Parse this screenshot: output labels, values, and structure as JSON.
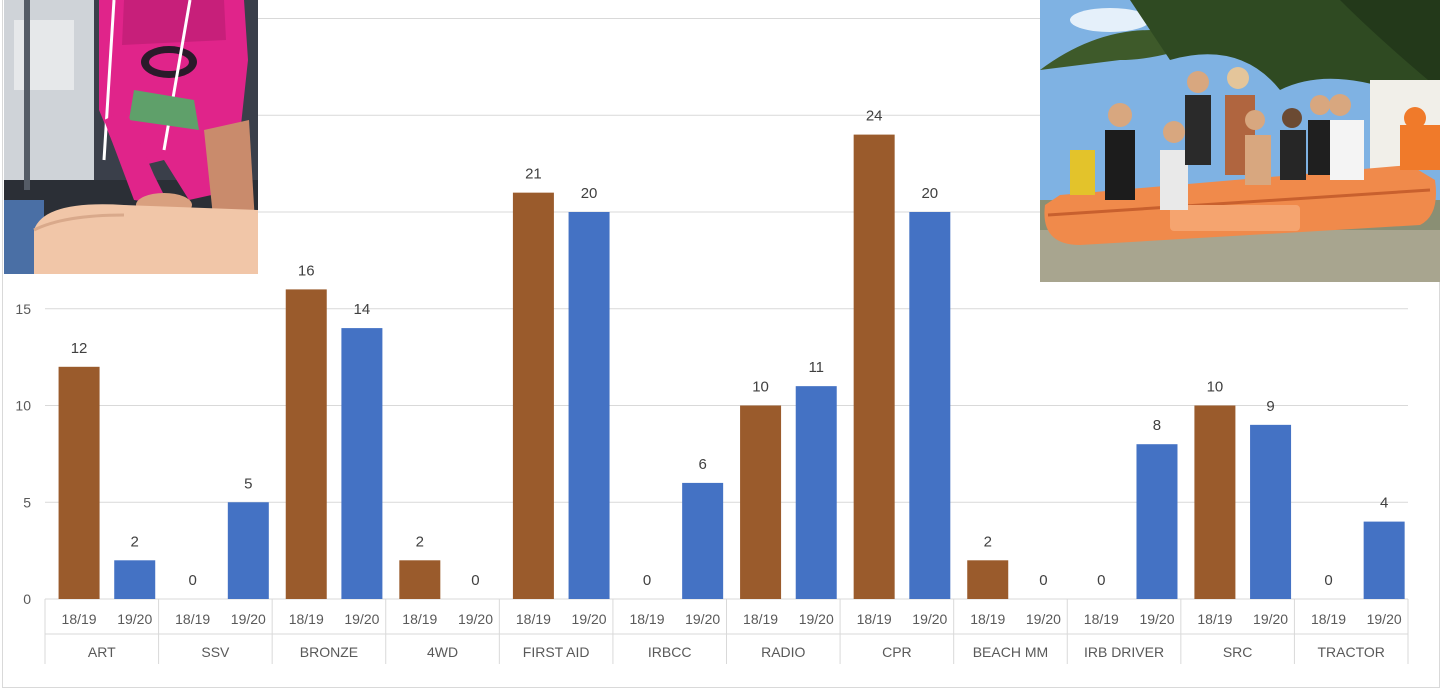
{
  "colors": {
    "series_1819": "#9A5B2C",
    "series_1920": "#4472C4",
    "gridline": "#d9d9d9",
    "axis_text": "#595959"
  },
  "chart_data": {
    "type": "bar",
    "categories": [
      "ART",
      "SSV",
      "BRONZE",
      "4WD",
      "FIRST AID",
      "IRBCC",
      "RADIO",
      "CPR",
      "BEACH MM",
      "IRB DRIVER",
      "SRC",
      "TRACTOR"
    ],
    "series": [
      {
        "name": "18/19",
        "values": [
          12,
          0,
          16,
          2,
          21,
          0,
          10,
          24,
          2,
          0,
          10,
          0
        ]
      },
      {
        "name": "19/20",
        "values": [
          2,
          5,
          14,
          0,
          20,
          6,
          11,
          20,
          0,
          8,
          9,
          4
        ]
      }
    ],
    "yticks": [
      0,
      5,
      10,
      15
    ],
    "ylim": [
      0,
      30
    ],
    "grid": true,
    "data_labels": true
  },
  "photos": [
    {
      "name": "cpr-training-photo",
      "icon": "photo-icon"
    },
    {
      "name": "irb-rescue-boat-photo",
      "icon": "photo-icon"
    }
  ]
}
